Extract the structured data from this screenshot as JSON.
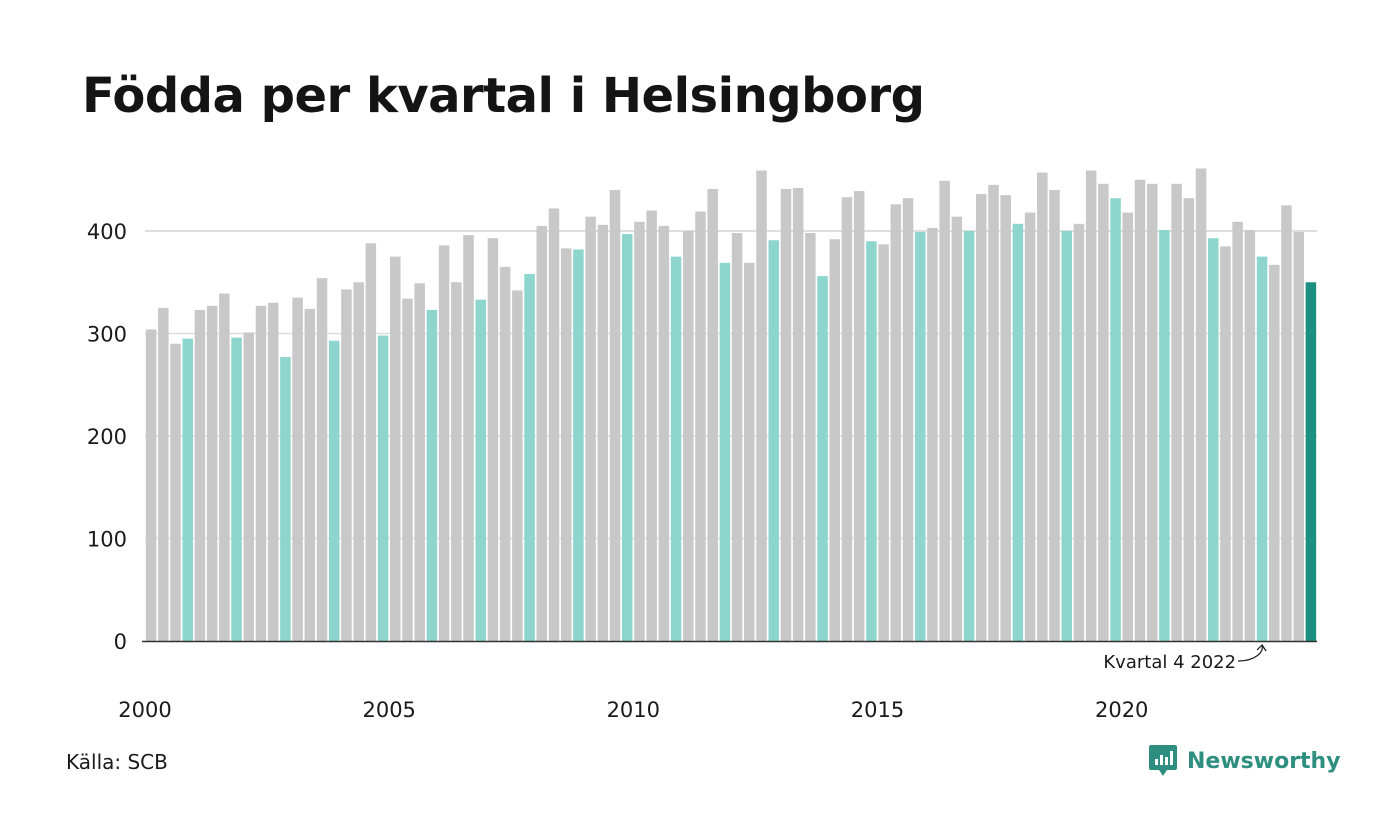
{
  "title": "Födda per kvartal i Helsingborg",
  "source": "Källa: SCB",
  "brand": {
    "name": "Newsworthy",
    "icon": "newsworthy-logo-icon"
  },
  "colors": {
    "default": "#c8c8c8",
    "q4": "#8dd5cd",
    "highlight": "#1b9080",
    "axis": "#333333",
    "grid": "#dedede"
  },
  "chart_data": {
    "type": "bar",
    "title": "Födda per kvartal i Helsingborg",
    "xlabel": "",
    "ylabel": "",
    "ylim": [
      0,
      470
    ],
    "yticks": [
      0,
      100,
      200,
      300,
      400
    ],
    "xticks": [
      "2000",
      "2005",
      "2010",
      "2015",
      "2020"
    ],
    "grid": true,
    "start": "2000 Q1",
    "annotation": "Kvartal 4 2022",
    "values": [
      304,
      325,
      290,
      295,
      323,
      327,
      339,
      296,
      301,
      327,
      330,
      277,
      335,
      324,
      354,
      293,
      343,
      350,
      388,
      298,
      375,
      334,
      349,
      323,
      386,
      350,
      396,
      333,
      393,
      365,
      342,
      358,
      405,
      422,
      383,
      382,
      414,
      406,
      440,
      397,
      409,
      420,
      405,
      375,
      400,
      419,
      441,
      369,
      398,
      369,
      459,
      391,
      441,
      442,
      398,
      356,
      392,
      433,
      439,
      390,
      387,
      426,
      432,
      399,
      403,
      449,
      414,
      400,
      436,
      445,
      435,
      407,
      418,
      457,
      440,
      400,
      407,
      459,
      446,
      432,
      418,
      450,
      446,
      401,
      446,
      432,
      461,
      393,
      385,
      409,
      401,
      375,
      367,
      425,
      399,
      350
    ]
  }
}
